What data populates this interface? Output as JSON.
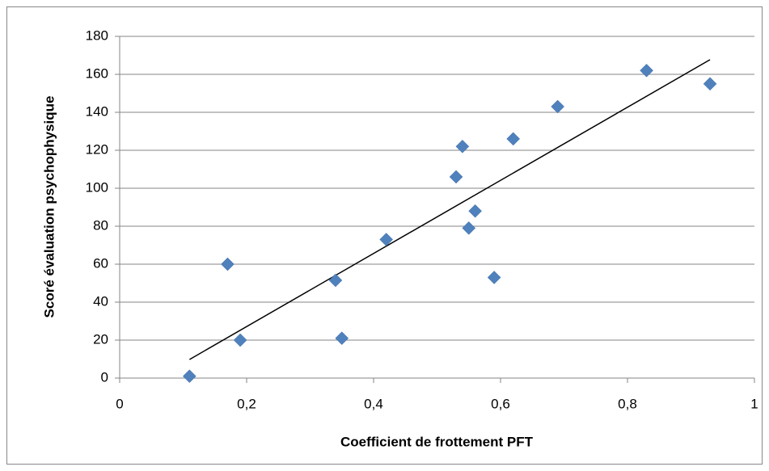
{
  "chart_data": {
    "type": "scatter",
    "x_label": "Coefficient de frottement PFT",
    "y_label": "Scoré évaluation psychophysique",
    "x": [
      0.11,
      0.17,
      0.19,
      0.34,
      0.35,
      0.42,
      0.53,
      0.54,
      0.55,
      0.56,
      0.59,
      0.62,
      0.69,
      0.83,
      0.93
    ],
    "values": [
      1,
      60,
      20,
      51.5,
      21,
      73,
      106,
      122,
      79,
      88,
      53,
      126,
      143,
      162,
      155
    ],
    "color": "#4f81bd",
    "trendline": {
      "x": [
        0.11,
        0.93
      ],
      "y": [
        9.8,
        167.7
      ],
      "color": "#000000"
    },
    "xlim": [
      0,
      1
    ],
    "xticks": [
      0,
      {
        "value": 0.2,
        "label": "0,2"
      },
      {
        "value": 0.4,
        "label": "0,4"
      },
      {
        "value": 0.6,
        "label": "0,6"
      },
      {
        "value": 0.8,
        "label": "0,8"
      },
      1
    ],
    "ylim": [
      0,
      180
    ],
    "yticks": [
      0,
      20,
      40,
      60,
      80,
      100,
      120,
      140,
      160,
      180
    ],
    "grid": true
  }
}
